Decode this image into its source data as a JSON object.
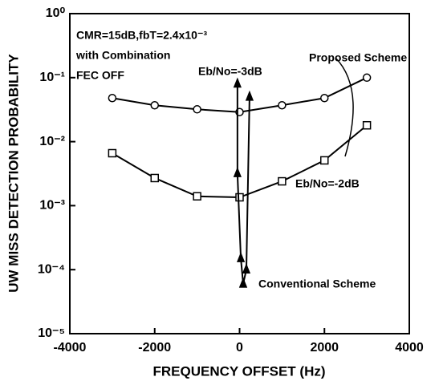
{
  "chart_data": {
    "type": "line",
    "xlabel": "FREQUENCY OFFSET (Hz)",
    "ylabel": "UW MISS DETECTION PROBABILITY",
    "xlim": [
      -4000,
      4000
    ],
    "xticks": [
      -4000,
      -2000,
      0,
      2000,
      4000
    ],
    "ylim": [
      1e-05,
      1
    ],
    "yscale": "log",
    "yticks": [
      {
        "value": 1,
        "label": "10⁰"
      },
      {
        "value": 0.1,
        "label": "10⁻¹"
      },
      {
        "value": 0.01,
        "label": "10⁻²"
      },
      {
        "value": 0.001,
        "label": "10⁻³"
      },
      {
        "value": 0.0001,
        "label": "10⁻⁴"
      },
      {
        "value": 1e-05,
        "label": "10⁻⁵"
      }
    ],
    "series": [
      {
        "color": "#000000",
        "marker": "circle",
        "x": [
          -3000,
          -2000,
          -1000,
          0,
          1000,
          2000,
          3000
        ],
        "values": [
          0.048,
          0.037,
          0.032,
          0.029,
          0.037,
          0.048,
          0.1
        ]
      },
      {
        "color": "#000000",
        "marker": "square",
        "x": [
          -3000,
          -2000,
          -1000,
          0,
          1000,
          2000,
          3000
        ],
        "values": [
          0.0066,
          0.0027,
          0.0014,
          0.00135,
          0.0024,
          0.0051,
          0.018
        ]
      },
      {
        "color": "#000000",
        "marker": "triangle",
        "x": [
          -50,
          -50,
          30,
          85
        ],
        "values": [
          0.08,
          0.0032,
          0.00015,
          6e-05
        ]
      },
      {
        "color": "#000000",
        "marker": "triangle",
        "x": [
          85,
          160,
          235
        ],
        "values": [
          6e-05,
          0.0001,
          0.05
        ]
      }
    ],
    "annotations": [
      "CMR=15dB,fbT=2.4x10⁻³",
      "with Combination",
      "FEC OFF",
      "Eb/No=-3dB",
      "Proposed Scheme",
      "Eb/No=-2dB",
      "Conventional Scheme"
    ]
  }
}
